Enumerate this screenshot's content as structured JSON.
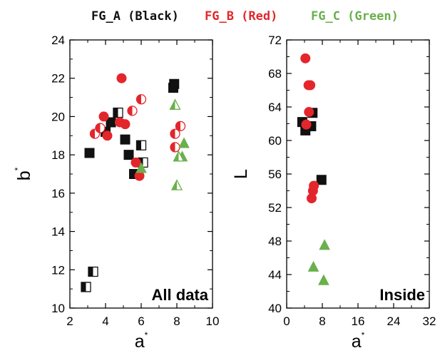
{
  "legend": [
    {
      "label": "FG_A (Black)",
      "color": "#111111"
    },
    {
      "label": "FG_B (Red)",
      "color": "#e3262b"
    },
    {
      "label": "FG_C (Green)",
      "color": "#6ab04c"
    }
  ],
  "chart_data": [
    {
      "type": "scatter",
      "title": "All data",
      "xlabel": "a*",
      "ylabel": "b*",
      "xlim": [
        2,
        10
      ],
      "ylim": [
        10,
        24
      ],
      "xticks": [
        2,
        4,
        6,
        8,
        10
      ],
      "yticks": [
        10,
        12,
        14,
        16,
        18,
        20,
        22,
        24
      ],
      "series": [
        {
          "key": "FG_A",
          "color": "#111111",
          "marker": "square",
          "points": [
            {
              "x": 3.1,
              "y": 18.1,
              "fill": "full"
            },
            {
              "x": 4.0,
              "y": 19.2,
              "fill": "full"
            },
            {
              "x": 4.3,
              "y": 19.7,
              "fill": "full"
            },
            {
              "x": 5.1,
              "y": 18.8,
              "fill": "full"
            },
            {
              "x": 5.3,
              "y": 18.0,
              "fill": "full"
            },
            {
              "x": 5.6,
              "y": 17.0,
              "fill": "full"
            },
            {
              "x": 7.8,
              "y": 21.5,
              "fill": "full"
            },
            {
              "x": 7.85,
              "y": 21.7,
              "fill": "full"
            },
            {
              "x": 4.7,
              "y": 20.2,
              "fill": "half"
            },
            {
              "x": 6.0,
              "y": 18.5,
              "fill": "half"
            },
            {
              "x": 6.1,
              "y": 17.6,
              "fill": "half"
            },
            {
              "x": 2.9,
              "y": 11.1,
              "fill": "half"
            },
            {
              "x": 3.3,
              "y": 11.9,
              "fill": "half"
            }
          ]
        },
        {
          "key": "FG_B",
          "color": "#e3262b",
          "marker": "circle",
          "points": [
            {
              "x": 4.9,
              "y": 22.0,
              "fill": "full"
            },
            {
              "x": 3.9,
              "y": 20.0,
              "fill": "full"
            },
            {
              "x": 4.1,
              "y": 19.0,
              "fill": "full"
            },
            {
              "x": 4.8,
              "y": 19.7,
              "fill": "full"
            },
            {
              "x": 5.1,
              "y": 19.6,
              "fill": "full"
            },
            {
              "x": 5.7,
              "y": 17.6,
              "fill": "full"
            },
            {
              "x": 5.9,
              "y": 16.9,
              "fill": "full"
            },
            {
              "x": 3.4,
              "y": 19.1,
              "fill": "half"
            },
            {
              "x": 3.7,
              "y": 19.4,
              "fill": "half"
            },
            {
              "x": 5.5,
              "y": 20.3,
              "fill": "half"
            },
            {
              "x": 6.0,
              "y": 20.9,
              "fill": "half"
            },
            {
              "x": 7.9,
              "y": 19.1,
              "fill": "half"
            },
            {
              "x": 7.9,
              "y": 18.4,
              "fill": "half"
            },
            {
              "x": 8.2,
              "y": 19.5,
              "fill": "half"
            }
          ]
        },
        {
          "key": "FG_C",
          "color": "#6ab04c",
          "marker": "triangle",
          "points": [
            {
              "x": 6.0,
              "y": 17.3,
              "fill": "full"
            },
            {
              "x": 8.4,
              "y": 18.6,
              "fill": "full"
            },
            {
              "x": 8.3,
              "y": 17.9,
              "fill": "full"
            },
            {
              "x": 7.9,
              "y": 20.6,
              "fill": "half"
            },
            {
              "x": 8.1,
              "y": 17.9,
              "fill": "half"
            },
            {
              "x": 8.0,
              "y": 16.4,
              "fill": "half"
            }
          ]
        }
      ]
    },
    {
      "type": "scatter",
      "title": "Inside",
      "xlabel": "a*",
      "ylabel": "L",
      "xlim": [
        0,
        32
      ],
      "ylim": [
        40,
        72
      ],
      "xticks": [
        0,
        8,
        16,
        24,
        32
      ],
      "yticks": [
        40,
        44,
        48,
        52,
        56,
        60,
        64,
        68,
        72
      ],
      "series": [
        {
          "key": "FG_A",
          "color": "#111111",
          "marker": "square",
          "points": [
            {
              "x": 3.5,
              "y": 62.2,
              "fill": "full"
            },
            {
              "x": 4.2,
              "y": 61.2,
              "fill": "full"
            },
            {
              "x": 5.5,
              "y": 61.7,
              "fill": "full"
            },
            {
              "x": 5.8,
              "y": 63.3,
              "fill": "full"
            },
            {
              "x": 7.8,
              "y": 55.3,
              "fill": "full"
            }
          ]
        },
        {
          "key": "FG_B",
          "color": "#e3262b",
          "marker": "circle",
          "points": [
            {
              "x": 4.2,
              "y": 69.8,
              "fill": "full"
            },
            {
              "x": 4.9,
              "y": 66.6,
              "fill": "full"
            },
            {
              "x": 5.3,
              "y": 66.6,
              "fill": "full"
            },
            {
              "x": 5.0,
              "y": 63.4,
              "fill": "full"
            },
            {
              "x": 4.4,
              "y": 61.9,
              "fill": "full"
            },
            {
              "x": 6.1,
              "y": 54.6,
              "fill": "full"
            },
            {
              "x": 5.9,
              "y": 54.0,
              "fill": "full"
            },
            {
              "x": 5.6,
              "y": 53.1,
              "fill": "full"
            }
          ]
        },
        {
          "key": "FG_C",
          "color": "#6ab04c",
          "marker": "triangle",
          "points": [
            {
              "x": 8.5,
              "y": 47.5,
              "fill": "full"
            },
            {
              "x": 6.0,
              "y": 44.9,
              "fill": "full"
            },
            {
              "x": 8.3,
              "y": 43.3,
              "fill": "full"
            }
          ]
        }
      ]
    }
  ]
}
